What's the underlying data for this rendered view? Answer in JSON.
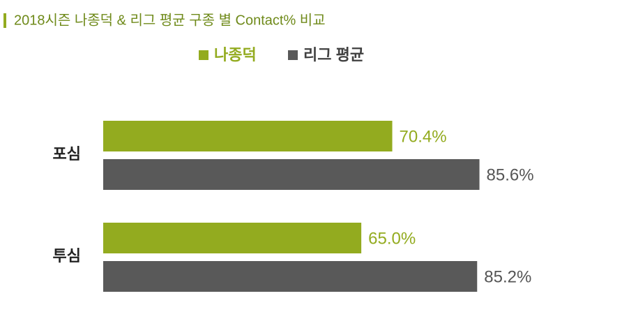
{
  "chart_data": {
    "type": "hbar",
    "title": "2018시즌 나종덕 & 리그 평균 구종 별 Contact% 비교",
    "categories": [
      "포심",
      "투심"
    ],
    "series": [
      {
        "name": "나종덕",
        "color": "#93ab1f",
        "values": [
          70.4,
          65.0
        ],
        "value_labels": [
          "70.4%",
          "65.0%"
        ]
      },
      {
        "name": "리그 평균",
        "color": "#595959",
        "values": [
          85.6,
          85.2
        ],
        "value_labels": [
          "85.6%",
          "85.2%"
        ]
      }
    ],
    "xlim": [
      20,
      100
    ],
    "legend": "top"
  }
}
